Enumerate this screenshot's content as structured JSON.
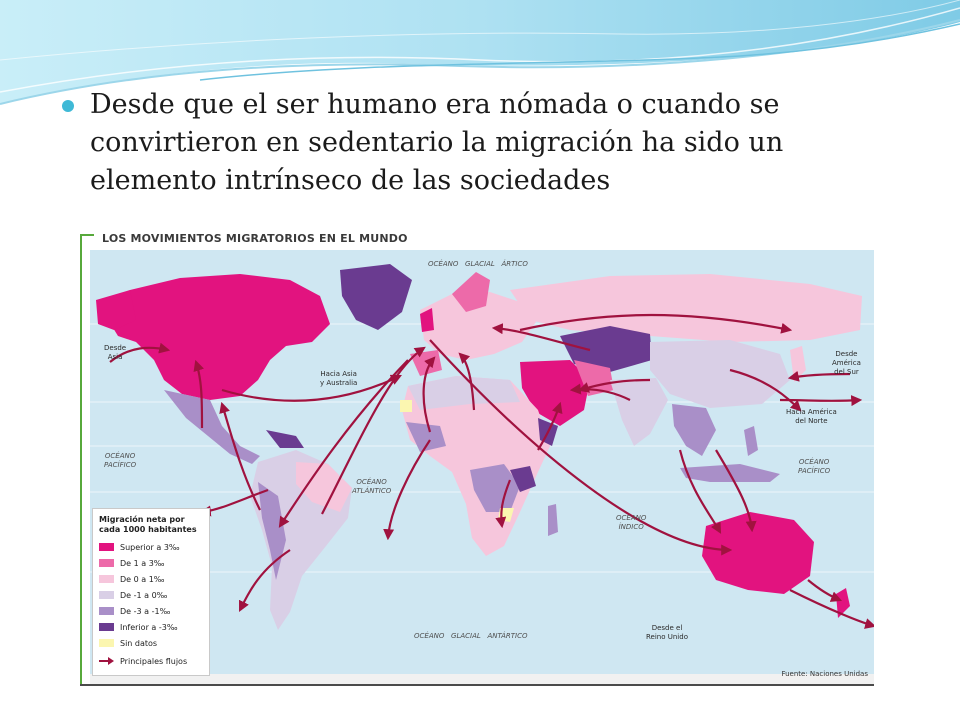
{
  "bullet": {
    "text": "Desde que el ser humano era nómada o cuando se convirtieron en sedentario  la migración ha sido un elemento intrínseco  de las sociedades"
  },
  "map": {
    "title": "LOS MOVIMIENTOS MIGRATORIOS EN EL MUNDO",
    "labels": {
      "desde_asia": "Desde\nAsia",
      "hacia_asia_australia": "Hacia Asia\ny Australia",
      "desde_america_sur": "Desde\nAmérica\ndel Sur",
      "hacia_america_norte": "Hacia América\ndel Norte",
      "desde_reino_unido": "Desde el\nReino Unido"
    },
    "oceans": {
      "glacial_artico": "OCÉANO   GLACIAL   ÁRTICO",
      "pacifico_west": "OCÉANO\nPACÍFICO",
      "atlantico": "OCÉANO\nATLÁNTICO",
      "indico": "OCÉANO\nÍNDICO",
      "pacifico_east": "OCÉANO\nPACÍFICO",
      "glacial_antartico": "OCÉANO   GLACIAL   ANTÁRTICO"
    },
    "legend": {
      "title": "Migración neta por cada 1000 habitantes",
      "items": [
        {
          "label": "Superior a 3‰",
          "color": "#e2137f"
        },
        {
          "label": "De 1 a 3‰",
          "color": "#ed6aa9"
        },
        {
          "label": "De 0 a 1‰",
          "color": "#f6c6dc"
        },
        {
          "label": "De -1 a 0‰",
          "color": "#d9cfe6"
        },
        {
          "label": "De -3 a -1‰",
          "color": "#a98fc8"
        },
        {
          "label": "Inferior a -3‰",
          "color": "#6a3b90"
        },
        {
          "label": "Sin datos",
          "color": "#fbf6b0"
        }
      ],
      "flows_label": "Principales flujos",
      "flows_color": "#a0123f"
    },
    "source": "Fuente: Naciones Unidas"
  },
  "colors": {
    "ocean": "#cfe7f2",
    "bullet": "#3fb9d6",
    "header_wave": "#bfe6f3"
  }
}
